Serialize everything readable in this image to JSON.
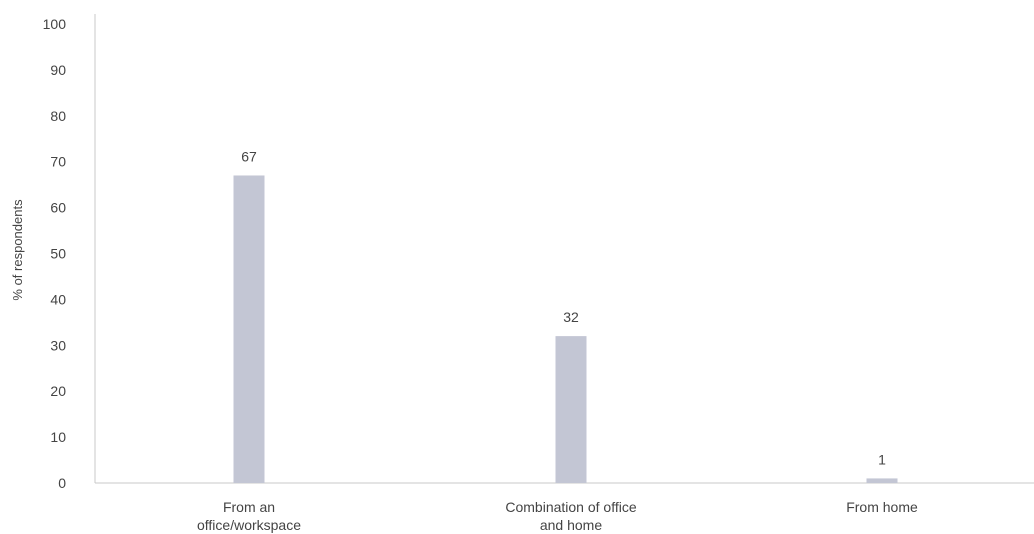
{
  "chart_data": {
    "type": "bar",
    "categories": [
      [
        "From an",
        "office/workspace"
      ],
      [
        "Combination of office",
        "and home"
      ],
      [
        "From home"
      ]
    ],
    "values": [
      67,
      32,
      1
    ],
    "data_labels": [
      "67",
      "32",
      "1"
    ],
    "title": "",
    "xlabel": "",
    "ylabel": "% of respondents",
    "ylim": [
      0,
      100
    ],
    "yticks": [
      0,
      10,
      20,
      30,
      40,
      50,
      60,
      70,
      80,
      90,
      100
    ],
    "grid": false,
    "legend": "none",
    "colors": {
      "bar": "#c3c6d4",
      "axis": "#c8c8c8",
      "text": "#444444"
    }
  }
}
